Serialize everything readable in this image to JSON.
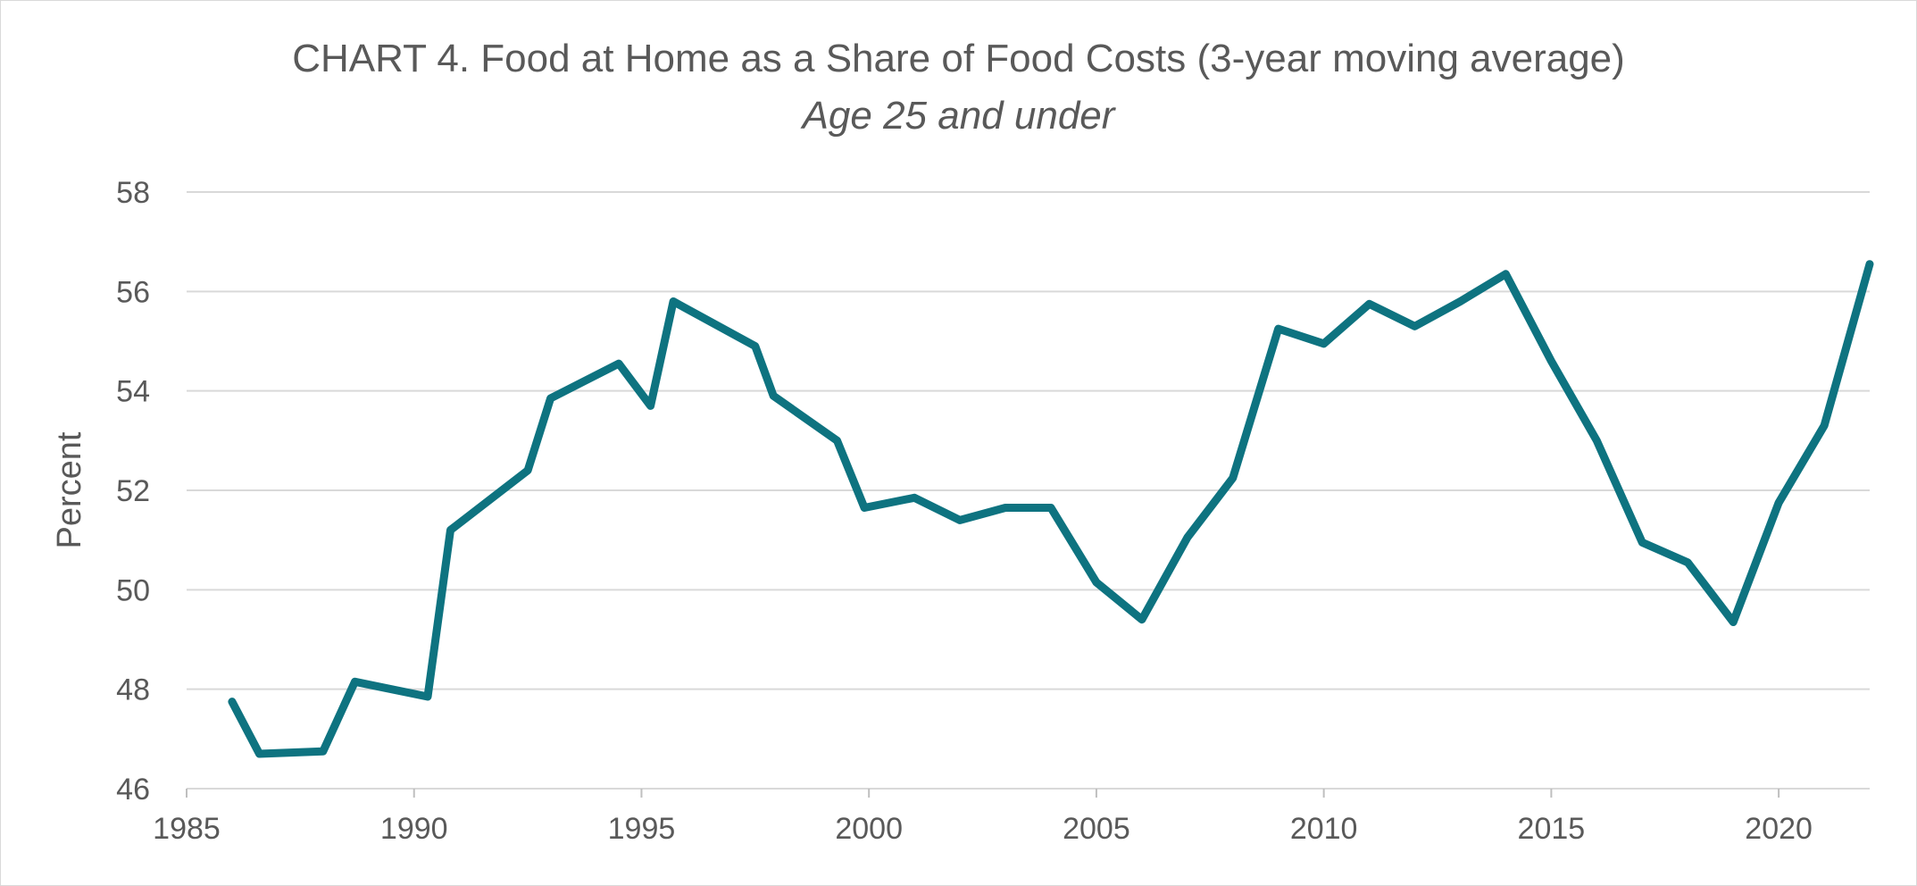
{
  "chart_data": {
    "type": "line",
    "title": "CHART 4. Food at Home as a Share of Food Costs (3-year moving average)",
    "subtitle": "Age 25 and under",
    "xlabel": "",
    "ylabel": "Percent",
    "xlim": [
      1985,
      2022
    ],
    "ylim": [
      46,
      58
    ],
    "xticks": [
      1985,
      1990,
      1995,
      2000,
      2005,
      2010,
      2015,
      2020
    ],
    "yticks": [
      46,
      48,
      50,
      52,
      54,
      56,
      58
    ],
    "grid": "horizontal",
    "legend": "none",
    "series": [
      {
        "color": "#0e7380",
        "points": [
          [
            1986.0,
            47.75
          ],
          [
            1986.6,
            46.7
          ],
          [
            1988.0,
            46.75
          ],
          [
            1988.7,
            48.15
          ],
          [
            1990.3,
            47.85
          ],
          [
            1990.8,
            51.2
          ],
          [
            1992.5,
            52.4
          ],
          [
            1993.0,
            53.85
          ],
          [
            1994.5,
            54.55
          ],
          [
            1995.2,
            53.7
          ],
          [
            1995.7,
            55.8
          ],
          [
            1997.5,
            54.9
          ],
          [
            1997.9,
            53.9
          ],
          [
            1999.3,
            53.0
          ],
          [
            1999.9,
            51.65
          ],
          [
            2001.0,
            51.85
          ],
          [
            2002.0,
            51.4
          ],
          [
            2003.0,
            51.65
          ],
          [
            2004.0,
            51.65
          ],
          [
            2005.0,
            50.15
          ],
          [
            2006.0,
            49.4
          ],
          [
            2007.0,
            51.05
          ],
          [
            2008.0,
            52.25
          ],
          [
            2009.0,
            55.25
          ],
          [
            2010.0,
            54.95
          ],
          [
            2011.0,
            55.75
          ],
          [
            2012.0,
            55.3
          ],
          [
            2013.0,
            55.8
          ],
          [
            2014.0,
            56.35
          ],
          [
            2015.0,
            54.6
          ],
          [
            2016.0,
            53.0
          ],
          [
            2017.0,
            50.95
          ],
          [
            2018.0,
            50.55
          ],
          [
            2019.0,
            49.35
          ],
          [
            2020.0,
            51.75
          ],
          [
            2021.0,
            53.3
          ],
          [
            2022.0,
            56.55
          ]
        ]
      }
    ]
  }
}
